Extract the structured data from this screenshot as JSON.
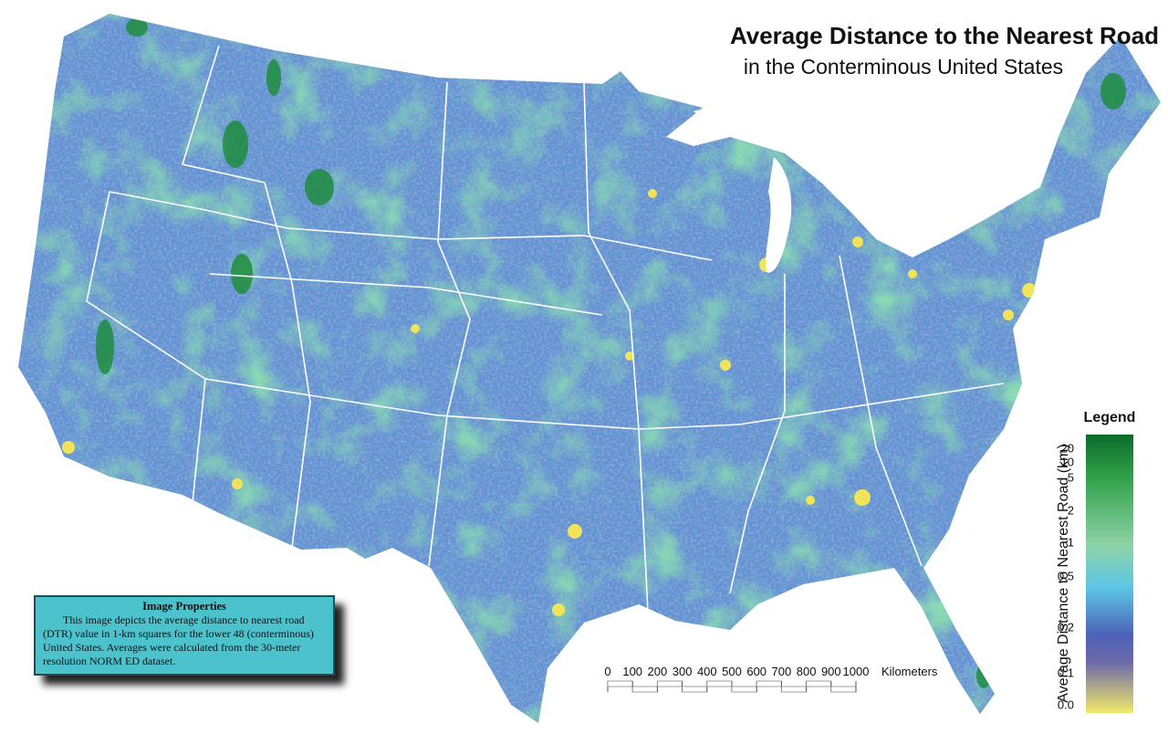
{
  "header": {
    "title": "Average Distance to the Nearest Road",
    "subtitle": "in the Conterminous United States"
  },
  "legend": {
    "title": "Legend",
    "axis_label": "Average Distance to Nearest Road (km)",
    "ticks": [
      "20",
      "10",
      "5",
      "2",
      "1",
      "0.5",
      "0.2",
      "0.1",
      "0.0"
    ]
  },
  "scale_bar": {
    "ticks": [
      0,
      100,
      200,
      300,
      400,
      500,
      600,
      700,
      800,
      900,
      1000
    ],
    "unit": "Kilometers"
  },
  "info_box": {
    "title": "Image Properties",
    "text": "This image depicts the average distance to nearest road (DTR) value in 1-km squares for the lower 48 (conterminous) United States.  Averages were calculated from the 30-meter resolution NORM ED dataset."
  }
}
